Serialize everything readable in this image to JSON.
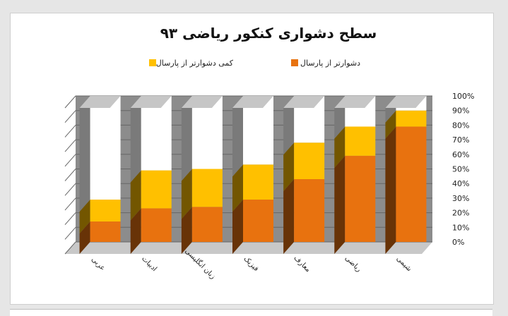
{
  "chart_data": {
    "type": "bar",
    "stacked": true,
    "three_d": true,
    "title": "سطح دشواری کنکور ریاضی ۹۳",
    "categories": [
      "عربی",
      "ادبیات",
      "زبان انگلیسی",
      "فیزیک",
      "معارف",
      "ریاضی",
      "شیمی"
    ],
    "series": [
      {
        "name": "دشوارتر از پارسال",
        "color": "#e8720f",
        "values": [
          14,
          23,
          24,
          29,
          43,
          59,
          79
        ]
      },
      {
        "name": "کمی دشوارتر از پارسال",
        "color": "#ffc000",
        "values": [
          15,
          26,
          26,
          24,
          25,
          20,
          11
        ]
      }
    ],
    "ylim": [
      0,
      100
    ],
    "yticks": [
      "0%",
      "10%",
      "20%",
      "30%",
      "40%",
      "50%",
      "60%",
      "70%",
      "80%",
      "90%",
      "100%"
    ],
    "legend_position": "top",
    "grid": true,
    "colors": {
      "back_wall": "#8c8c8c",
      "floor": "#c8c8c8",
      "gridline": "#666666",
      "bar_top": "#c6c6c6"
    }
  }
}
